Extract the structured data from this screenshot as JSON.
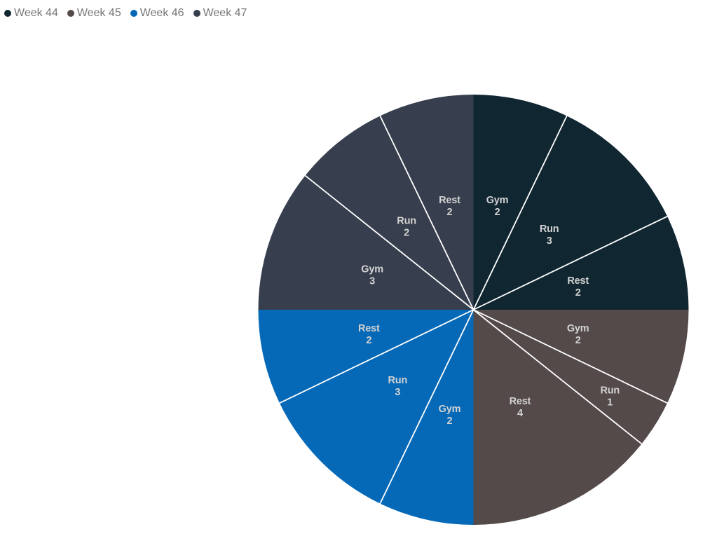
{
  "page": {
    "background": "#ffffff",
    "label_text_color": "#d2d2d2",
    "legend_text_color": "#777777",
    "separator_color": "#ffffff"
  },
  "chart_data": {
    "type": "pie",
    "title": "",
    "legend_position": "top-left",
    "unit_total": 28,
    "grid": false,
    "groups": [
      {
        "name": "Week 44",
        "color": "#102631",
        "slices": [
          {
            "label": "Gym",
            "value": 2
          },
          {
            "label": "Run",
            "value": 3
          },
          {
            "label": "Rest",
            "value": 2
          }
        ]
      },
      {
        "name": "Week 45",
        "color": "#544a49",
        "slices": [
          {
            "label": "Gym",
            "value": 2
          },
          {
            "label": "Run",
            "value": 1
          },
          {
            "label": "Rest",
            "value": 4
          }
        ]
      },
      {
        "name": "Week 46",
        "color": "#0569b8",
        "slices": [
          {
            "label": "Gym",
            "value": 2
          },
          {
            "label": "Run",
            "value": 3
          },
          {
            "label": "Rest",
            "value": 2
          }
        ]
      },
      {
        "name": "Week 47",
        "color": "#373e4d",
        "slices": [
          {
            "label": "Gym",
            "value": 3
          },
          {
            "label": "Run",
            "value": 2
          },
          {
            "label": "Rest",
            "value": 2
          }
        ]
      }
    ]
  }
}
